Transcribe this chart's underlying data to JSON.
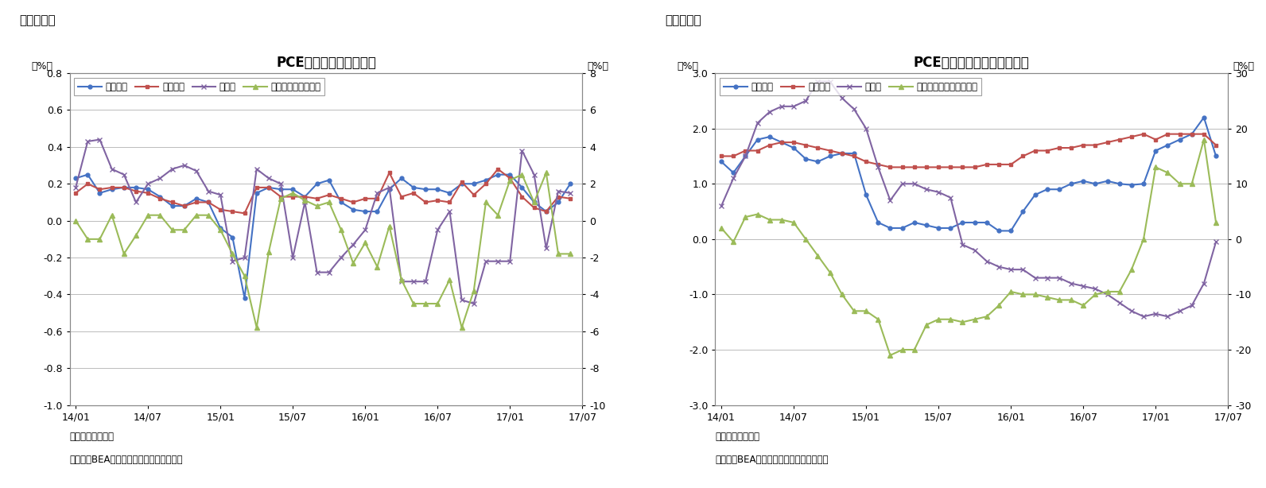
{
  "chart1": {
    "title": "PCE価格指数（前月比）",
    "panel_label": "（図表６）",
    "ylabel_left": "（%）",
    "ylabel_right": "（%）",
    "ylim_left": [
      -1.0,
      0.8
    ],
    "ylim_right": [
      -10,
      8
    ],
    "yticks_left": [
      -1.0,
      -0.8,
      -0.6,
      -0.4,
      -0.2,
      0.0,
      0.2,
      0.4,
      0.6,
      0.8
    ],
    "yticks_right": [
      -10,
      -8,
      -6,
      -4,
      -2,
      0,
      2,
      4,
      6,
      8
    ],
    "note1": "（注）季節調整済",
    "note2": "（資料）BEAよりニッセイ基礎研究所作成",
    "series": {
      "s1": {
        "label": "総合指数",
        "color": "#4472C4",
        "marker": "o",
        "markersize": 3.5,
        "linewidth": 1.5,
        "axis": "left",
        "values": [
          0.23,
          0.25,
          0.15,
          0.17,
          0.18,
          0.18,
          0.17,
          0.13,
          0.08,
          0.08,
          0.12,
          0.1,
          -0.04,
          -0.09,
          -0.42,
          0.15,
          0.18,
          0.17,
          0.17,
          0.13,
          0.2,
          0.22,
          0.1,
          0.06,
          0.05,
          0.05,
          0.17,
          0.23,
          0.18,
          0.17,
          0.17,
          0.15,
          0.2,
          0.2,
          0.22,
          0.25,
          0.25,
          0.18,
          0.1,
          0.05,
          0.1,
          0.2
        ]
      },
      "s2": {
        "label": "コア指数",
        "color": "#C0504D",
        "marker": "s",
        "markersize": 3.5,
        "linewidth": 1.5,
        "axis": "left",
        "values": [
          0.15,
          0.2,
          0.17,
          0.18,
          0.18,
          0.16,
          0.15,
          0.12,
          0.1,
          0.08,
          0.1,
          0.1,
          0.06,
          0.05,
          0.04,
          0.18,
          0.18,
          0.13,
          0.13,
          0.13,
          0.12,
          0.14,
          0.12,
          0.1,
          0.12,
          0.12,
          0.26,
          0.13,
          0.15,
          0.1,
          0.11,
          0.1,
          0.21,
          0.14,
          0.2,
          0.28,
          0.23,
          0.13,
          0.07,
          0.05,
          0.13,
          0.12
        ]
      },
      "s3": {
        "label": "食料品",
        "color": "#8064A2",
        "marker": "x",
        "markersize": 5,
        "linewidth": 1.5,
        "axis": "left",
        "values": [
          0.18,
          0.43,
          0.44,
          0.28,
          0.25,
          0.1,
          0.2,
          0.23,
          0.28,
          0.3,
          0.27,
          0.16,
          0.14,
          -0.22,
          -0.2,
          0.28,
          0.23,
          0.2,
          -0.2,
          0.1,
          -0.28,
          -0.28,
          -0.2,
          -0.13,
          -0.05,
          0.15,
          0.18,
          -0.33,
          -0.33,
          -0.33,
          -0.05,
          0.05,
          -0.43,
          -0.45,
          -0.22,
          -0.22,
          -0.22,
          0.38,
          0.25,
          -0.15,
          0.16,
          0.15
        ]
      },
      "s4": {
        "label": "エネルギー（右軸）",
        "color": "#9BBB59",
        "marker": "^",
        "markersize": 4,
        "linewidth": 1.5,
        "axis": "right",
        "values": [
          0.0,
          -1.0,
          -1.0,
          0.3,
          -1.8,
          -0.8,
          0.3,
          0.3,
          -0.5,
          -0.5,
          0.3,
          0.3,
          -0.5,
          -1.8,
          -3.0,
          -5.8,
          -1.7,
          1.2,
          1.5,
          1.1,
          0.8,
          1.0,
          -0.5,
          -2.3,
          -1.2,
          -2.5,
          -0.3,
          -3.2,
          -4.5,
          -4.5,
          -4.5,
          -3.2,
          -5.8,
          -3.8,
          1.0,
          0.3,
          2.2,
          2.5,
          1.0,
          2.6,
          -1.8,
          -1.8
        ]
      }
    },
    "x_labels": [
      "14/01",
      "14/07",
      "15/01",
      "15/07",
      "16/01",
      "16/07",
      "17/01",
      "17/07"
    ],
    "x_ticks": [
      0,
      6,
      12,
      18,
      24,
      30,
      36,
      42
    ]
  },
  "chart2": {
    "title": "PCE価格指数（前年同月比）",
    "panel_label": "（図表７）",
    "ylabel_left": "（%）",
    "ylabel_right": "（%）",
    "ylim_left": [
      -3,
      3
    ],
    "ylim_right": [
      -30,
      30
    ],
    "yticks_left": [
      -3,
      -2,
      -1,
      0,
      1,
      2,
      3
    ],
    "yticks_right": [
      -30,
      -20,
      -10,
      0,
      10,
      20,
      30
    ],
    "note1": "（注）季節調整済",
    "note2": "（資料）BEAよりニッセイ基礎研究所作成",
    "series": {
      "s1": {
        "label": "総合指数",
        "color": "#4472C4",
        "marker": "o",
        "markersize": 3.5,
        "linewidth": 1.5,
        "axis": "left",
        "values": [
          1.4,
          1.2,
          1.5,
          1.8,
          1.85,
          1.75,
          1.65,
          1.45,
          1.4,
          1.5,
          1.55,
          1.55,
          0.8,
          0.3,
          0.2,
          0.2,
          0.3,
          0.25,
          0.2,
          0.2,
          0.3,
          0.3,
          0.3,
          0.15,
          0.15,
          0.5,
          0.8,
          0.9,
          0.9,
          1.0,
          1.05,
          1.0,
          1.05,
          1.0,
          0.98,
          1.0,
          1.6,
          1.7,
          1.8,
          1.9,
          2.2,
          1.5
        ]
      },
      "s2": {
        "label": "コア指数",
        "color": "#C0504D",
        "marker": "s",
        "markersize": 3.5,
        "linewidth": 1.5,
        "axis": "left",
        "values": [
          1.5,
          1.5,
          1.6,
          1.6,
          1.7,
          1.75,
          1.75,
          1.7,
          1.65,
          1.6,
          1.55,
          1.5,
          1.4,
          1.35,
          1.3,
          1.3,
          1.3,
          1.3,
          1.3,
          1.3,
          1.3,
          1.3,
          1.35,
          1.35,
          1.35,
          1.5,
          1.6,
          1.6,
          1.65,
          1.65,
          1.7,
          1.7,
          1.75,
          1.8,
          1.85,
          1.9,
          1.8,
          1.9,
          1.9,
          1.9,
          1.9,
          1.7
        ]
      },
      "s3": {
        "label": "食料品",
        "color": "#8064A2",
        "marker": "x",
        "markersize": 5,
        "linewidth": 1.5,
        "axis": "left",
        "values": [
          0.6,
          1.1,
          1.5,
          2.1,
          2.3,
          2.4,
          2.4,
          2.5,
          2.85,
          2.85,
          2.55,
          2.35,
          2.0,
          1.3,
          0.7,
          1.0,
          1.0,
          0.9,
          0.85,
          0.75,
          -0.1,
          -0.2,
          -0.4,
          -0.5,
          -0.55,
          -0.55,
          -0.7,
          -0.7,
          -0.7,
          -0.8,
          -0.85,
          -0.9,
          -1.0,
          -1.15,
          -1.3,
          -1.4,
          -1.35,
          -1.4,
          -1.3,
          -1.2,
          -0.8,
          -0.05
        ]
      },
      "s4": {
        "label": "エネルギー関連（右軸）",
        "color": "#9BBB59",
        "marker": "^",
        "markersize": 4,
        "linewidth": 1.5,
        "axis": "right",
        "values": [
          2.0,
          -0.5,
          4.0,
          4.5,
          3.5,
          3.5,
          3.0,
          0.0,
          -3.0,
          -6.0,
          -10.0,
          -13.0,
          -13.0,
          -14.5,
          -21.0,
          -20.0,
          -20.0,
          -15.5,
          -14.5,
          -14.5,
          -15.0,
          -14.5,
          -14.0,
          -12.0,
          -9.5,
          -10.0,
          -10.0,
          -10.5,
          -11.0,
          -11.0,
          -12.0,
          -10.0,
          -9.5,
          -9.5,
          -5.5,
          0.0,
          13.0,
          12.0,
          10.0,
          10.0,
          18.0,
          3.0
        ]
      }
    },
    "x_labels": [
      "14/01",
      "14/07",
      "15/01",
      "15/07",
      "16/01",
      "16/07",
      "17/01",
      "17/07"
    ],
    "x_ticks": [
      0,
      6,
      12,
      18,
      24,
      30,
      36,
      42
    ]
  },
  "background_color": "#FFFFFF",
  "grid_color": "#BBBBBB"
}
